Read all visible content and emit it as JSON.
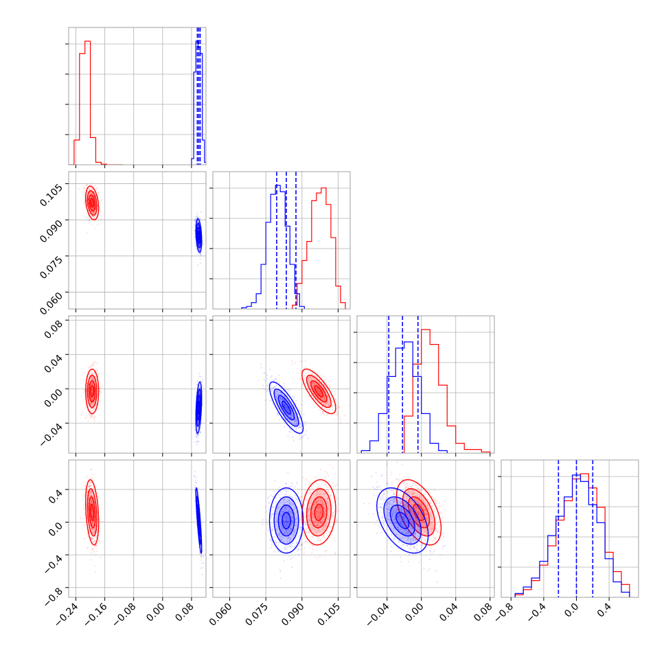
{
  "figure": {
    "name": "corner-plot",
    "parameters": 4,
    "colors": {
      "series_a": "#ff0000",
      "series_b": "#0000ff",
      "grid": "#b0b0b0",
      "axis": "#000000"
    }
  },
  "chart_data": {
    "type": "corner",
    "parameters": [
      {
        "id": "p1",
        "range": [
          -0.26,
          0.12
        ],
        "ticks": [
          -0.24,
          -0.16,
          -0.08,
          0.0,
          0.08
        ],
        "tick_labels": [
          "−0.24",
          "−0.16",
          "−0.08",
          "0.00",
          "0.08"
        ]
      },
      {
        "id": "p2",
        "range": [
          0.053,
          0.11
        ],
        "ticks": [
          0.06,
          0.075,
          0.09,
          0.105
        ],
        "tick_labels": [
          "0.060",
          "0.075",
          "0.090",
          "0.105"
        ]
      },
      {
        "id": "p3",
        "range": [
          -0.075,
          0.085
        ],
        "ticks": [
          -0.04,
          0.0,
          0.04,
          0.08
        ],
        "tick_labels": [
          "−0.04",
          "0.00",
          "0.04",
          "0.08"
        ]
      },
      {
        "id": "p4",
        "range": [
          -0.92,
          0.76
        ],
        "ticks": [
          -0.8,
          -0.4,
          0.0,
          0.4
        ],
        "tick_labels": [
          "−0.8",
          "−0.4",
          "0.0",
          "0.4"
        ]
      }
    ],
    "series": [
      {
        "color": "#ff0000",
        "mean": [
          -0.195,
          0.097,
          -0.003,
          0.12
        ],
        "std": [
          0.009,
          0.0035,
          0.013,
          0.2
        ],
        "histograms": [
          {
            "edges": [
              -0.26,
              -0.245,
              -0.23,
              -0.215,
              -0.2,
              -0.185,
              -0.17,
              -0.155,
              -0.14,
              -0.125,
              -0.11
            ],
            "counts": [
              0,
              0.2,
              0.9,
              1.0,
              0.22,
              0.02,
              0.005,
              0,
              0,
              0
            ]
          },
          {
            "edges": [
              0.086,
              0.088,
              0.09,
              0.092,
              0.094,
              0.096,
              0.098,
              0.1,
              0.102,
              0.104,
              0.106,
              0.108
            ],
            "counts": [
              0.03,
              0.2,
              0.38,
              0.53,
              0.85,
              0.91,
              0.95,
              0.82,
              0.56,
              0.18,
              0.05
            ]
          },
          {
            "edges": [
              -0.02,
              -0.01,
              0.0,
              0.01,
              0.02,
              0.03,
              0.04,
              0.05,
              0.06,
              0.07,
              0.08
            ],
            "counts": [
              0.3,
              0.72,
              1.0,
              0.88,
              0.55,
              0.22,
              0.08,
              0.03,
              0.03,
              0.01
            ]
          },
          {
            "edges": [
              -0.75,
              -0.65,
              -0.55,
              -0.45,
              -0.35,
              -0.25,
              -0.15,
              -0.05,
              0.05,
              0.15,
              0.25,
              0.35,
              0.45,
              0.55,
              0.65
            ],
            "counts": [
              0.02,
              0.06,
              0.13,
              0.25,
              0.4,
              0.6,
              0.75,
              0.92,
              0.96,
              0.85,
              0.7,
              0.35,
              0.2,
              0.1
            ]
          }
        ]
      },
      {
        "color": "#0000ff",
        "mean": [
          0.1,
          0.0835,
          -0.022,
          0.02
        ],
        "std": [
          0.004,
          0.0035,
          0.015,
          0.2
        ],
        "histograms": [
          {
            "edges": [
              0.08,
              0.086,
              0.092,
              0.098,
              0.104,
              0.11,
              0.116,
              0.122
            ],
            "counts": [
              0.05,
              0.75,
              1.0,
              0.95,
              0.9,
              0.2,
              0.02
            ]
          },
          {
            "edges": [
              0.065,
              0.067,
              0.069,
              0.071,
              0.073,
              0.075,
              0.077,
              0.079,
              0.081,
              0.083,
              0.085,
              0.087,
              0.089,
              0.091
            ],
            "counts": [
              0.01,
              0.02,
              0.05,
              0.12,
              0.35,
              0.68,
              0.9,
              0.97,
              0.92,
              0.65,
              0.35,
              0.12,
              0.02
            ]
          },
          {
            "edges": [
              -0.07,
              -0.06,
              -0.05,
              -0.04,
              -0.03,
              -0.02,
              -0.01,
              0.0,
              0.01,
              0.02,
              0.03
            ],
            "counts": [
              0.02,
              0.1,
              0.32,
              0.62,
              0.85,
              0.9,
              0.62,
              0.32,
              0.08,
              0.02
            ]
          },
          {
            "edges": [
              -0.75,
              -0.65,
              -0.55,
              -0.45,
              -0.35,
              -0.25,
              -0.15,
              -0.05,
              0.05,
              0.15,
              0.25,
              0.35,
              0.45,
              0.55,
              0.65
            ],
            "counts": [
              0.03,
              0.08,
              0.15,
              0.28,
              0.48,
              0.63,
              0.78,
              0.95,
              0.9,
              0.72,
              0.58,
              0.3,
              0.12,
              0.04
            ]
          }
        ]
      }
    ],
    "quantile_lines": [
      [
        0.096,
        0.1,
        0.104
      ],
      [
        0.0795,
        0.0835,
        0.0875
      ],
      [
        -0.038,
        -0.022,
        -0.004
      ],
      [
        -0.22,
        0.0,
        0.2
      ]
    ],
    "quantile_line_style": "dashed",
    "grid": true,
    "legend": "none"
  }
}
